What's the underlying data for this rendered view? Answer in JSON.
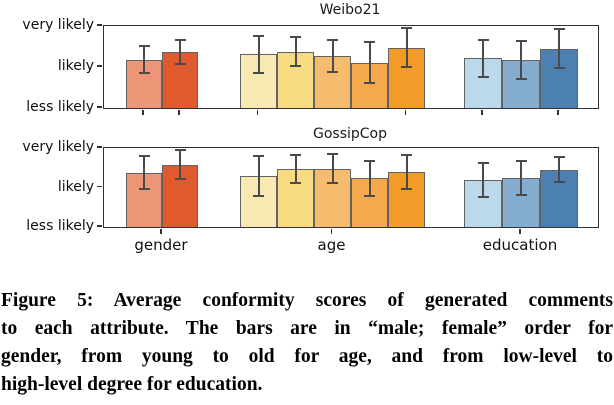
{
  "caption": {
    "lines": [
      "Figure 5: Average conformity scores of generated comments",
      "to each attribute. The bars are in “male; female” order for",
      "gender, from young to old for age, and from low-level to",
      "high-level degree for education."
    ]
  },
  "chart_data": [
    {
      "type": "bar",
      "title": "Weibo21",
      "yticklabels": [
        "very likely",
        "likely",
        "less likely"
      ],
      "yscale_values": [
        3,
        2,
        1
      ],
      "ylim": [
        1,
        3
      ],
      "show_category_labels": false,
      "grid": false,
      "groups": [
        {
          "category": "gender",
          "values": [
            2.18,
            2.37
          ],
          "errors": [
            0.33,
            0.29
          ],
          "colors": [
            "#EC9677",
            "#E05A30"
          ]
        },
        {
          "category": "age",
          "values": [
            2.31,
            2.37,
            2.27,
            2.11,
            2.47
          ],
          "errors": [
            0.45,
            0.35,
            0.39,
            0.5,
            0.47
          ],
          "colors": [
            "#F8E8B1",
            "#F8DB81",
            "#F5BC6D",
            "#F4A94C",
            "#F29B28"
          ]
        },
        {
          "category": "education",
          "values": [
            2.21,
            2.17,
            2.45
          ],
          "errors": [
            0.45,
            0.46,
            0.47
          ],
          "colors": [
            "#BCD9EC",
            "#85ADD0",
            "#4C7FB2"
          ]
        }
      ]
    },
    {
      "type": "bar",
      "title": "GossipCop",
      "yticklabels": [
        "very likely",
        "likely",
        "less likely"
      ],
      "yscale_values": [
        3,
        2,
        1
      ],
      "ylim": [
        1,
        3
      ],
      "show_category_labels": true,
      "grid": false,
      "groups": [
        {
          "category": "gender",
          "values": [
            2.38,
            2.58
          ],
          "errors": [
            0.42,
            0.36
          ],
          "colors": [
            "#EC9677",
            "#E05A30"
          ]
        },
        {
          "category": "age",
          "values": [
            2.29,
            2.47,
            2.48,
            2.23,
            2.39
          ],
          "errors": [
            0.51,
            0.36,
            0.37,
            0.44,
            0.44
          ],
          "colors": [
            "#F8E8B1",
            "#F8DB81",
            "#F5BC6D",
            "#F4A94C",
            "#F29B28"
          ]
        },
        {
          "category": "education",
          "values": [
            2.19,
            2.25,
            2.45
          ],
          "errors": [
            0.44,
            0.43,
            0.31
          ],
          "colors": [
            "#BCD9EC",
            "#85ADD0",
            "#4C7FB2"
          ]
        }
      ]
    }
  ],
  "style": {
    "bar_edge_color": "#636363",
    "error_bar_color": "#4a4a4a",
    "axis_color": "#333333"
  }
}
